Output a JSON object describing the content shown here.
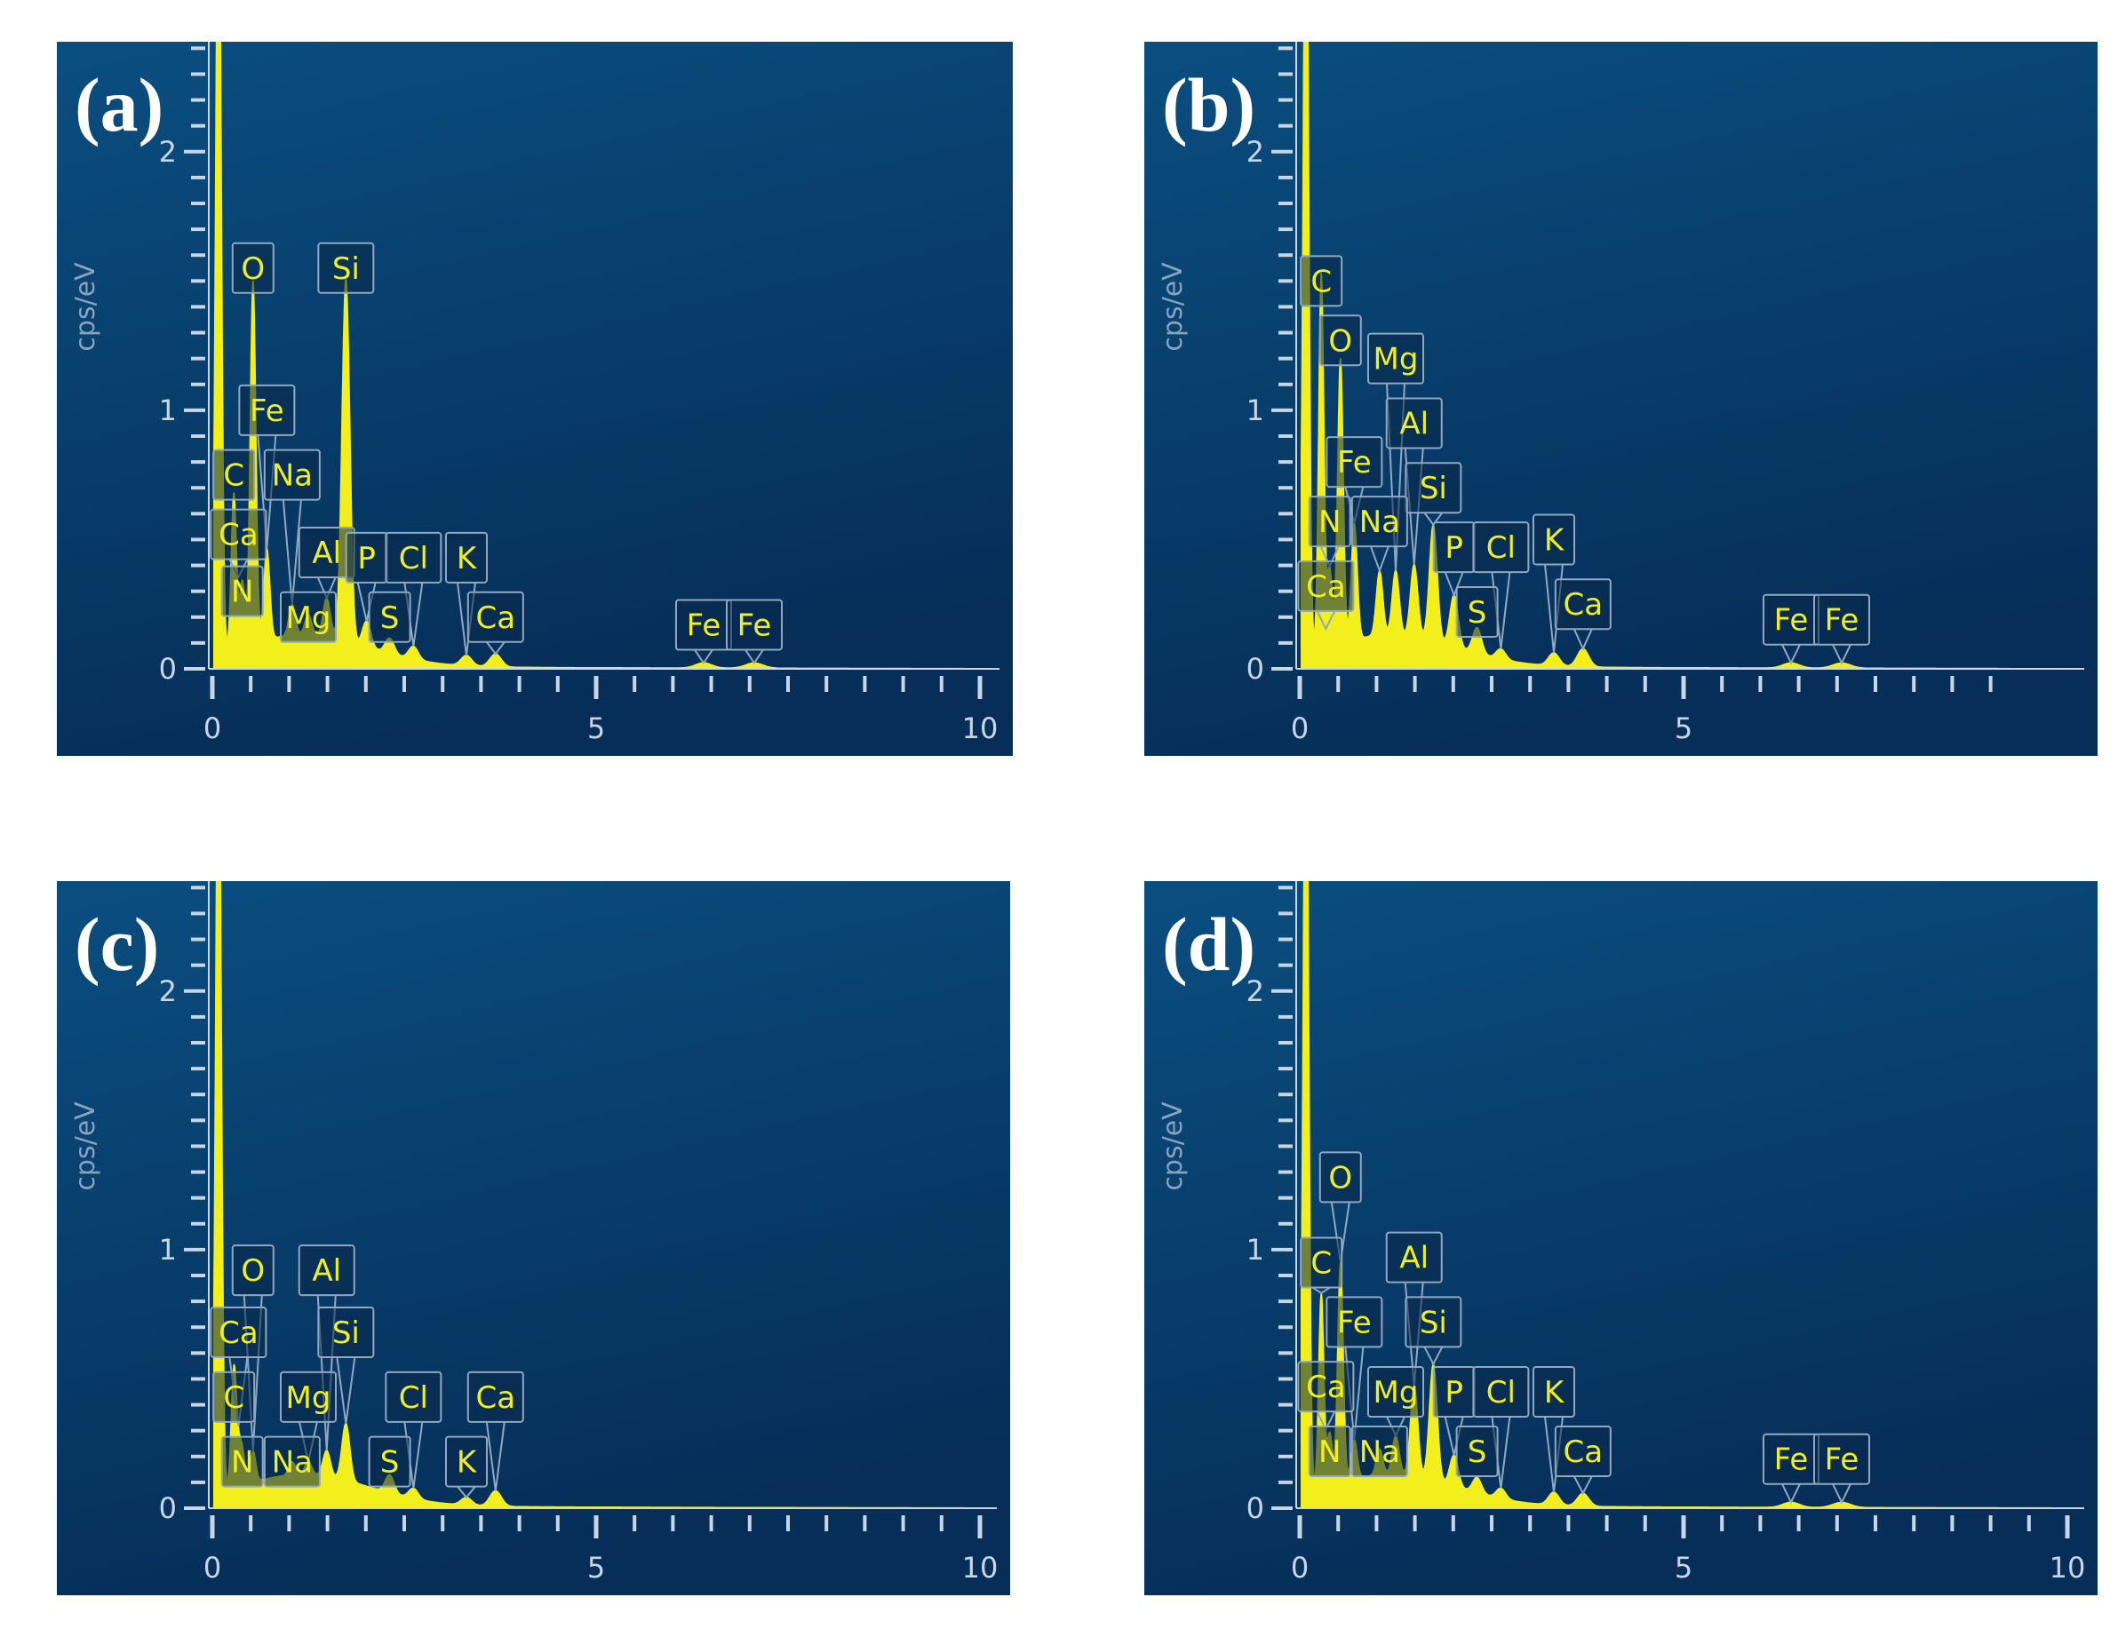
{
  "colors": {
    "background_top": "#0a4e80",
    "background_bottom": "#062e58",
    "spectrum": "#f2ef1c",
    "axis": "#c8d6e4",
    "axis_label": "#8aa3bd",
    "label_box": "#90a8c0"
  },
  "chart_data": [
    {
      "type": "area",
      "panel": "(a)",
      "ylabel": "cps/eV",
      "xlim": [
        0,
        10
      ],
      "ylim": [
        0,
        2.7
      ],
      "x_ticks": [
        "0",
        "5",
        "10"
      ],
      "y_ticks": [
        "0",
        "1",
        "2"
      ],
      "peaks": [
        {
          "element": "C",
          "x": 0.28,
          "y": 0.6
        },
        {
          "element": "N",
          "x": 0.39,
          "y": 0.25
        },
        {
          "element": "O",
          "x": 0.53,
          "y": 1.4
        },
        {
          "element": "Fe",
          "x": 0.71,
          "y": 0.35
        },
        {
          "element": "Na",
          "x": 1.04,
          "y": 0.12
        },
        {
          "element": "Mg",
          "x": 1.25,
          "y": 0.08
        },
        {
          "element": "Al",
          "x": 1.49,
          "y": 0.15
        },
        {
          "element": "Si",
          "x": 1.74,
          "y": 1.4
        },
        {
          "element": "P",
          "x": 2.01,
          "y": 0.1
        },
        {
          "element": "S",
          "x": 2.31,
          "y": 0.06
        },
        {
          "element": "Cl",
          "x": 2.62,
          "y": 0.05
        },
        {
          "element": "K",
          "x": 3.31,
          "y": 0.04
        },
        {
          "element": "Ca",
          "x": 3.69,
          "y": 0.05
        },
        {
          "element": "Fe",
          "x": 6.4,
          "y": 0.02
        },
        {
          "element": "Fe",
          "x": 7.06,
          "y": 0.02
        }
      ],
      "labels": [
        {
          "text": "O",
          "x": 0.53,
          "y": 1.55
        },
        {
          "text": "Si",
          "x": 1.74,
          "y": 1.55
        },
        {
          "text": "Fe",
          "x": 0.71,
          "y": 1.0
        },
        {
          "text": "C",
          "x": 0.28,
          "y": 0.75
        },
        {
          "text": "Na",
          "x": 1.04,
          "y": 0.75
        },
        {
          "text": "Ca",
          "x": 0.34,
          "y": 0.52
        },
        {
          "text": "Al",
          "x": 1.49,
          "y": 0.45
        },
        {
          "text": "P",
          "x": 2.01,
          "y": 0.43
        },
        {
          "text": "Cl",
          "x": 2.62,
          "y": 0.43
        },
        {
          "text": "K",
          "x": 3.31,
          "y": 0.43
        },
        {
          "text": "N",
          "x": 0.39,
          "y": 0.3
        },
        {
          "text": "Mg",
          "x": 1.25,
          "y": 0.2
        },
        {
          "text": "S",
          "x": 2.31,
          "y": 0.2
        },
        {
          "text": "Ca",
          "x": 3.69,
          "y": 0.2
        },
        {
          "text": "Fe",
          "x": 6.4,
          "y": 0.17
        },
        {
          "text": "Fe",
          "x": 7.06,
          "y": 0.17
        }
      ]
    },
    {
      "type": "area",
      "panel": "(b)",
      "ylabel": "cps/eV",
      "xlim": [
        0,
        9.3
      ],
      "ylim": [
        0,
        2.7
      ],
      "x_ticks": [
        "0",
        "5"
      ],
      "y_ticks": [
        "0",
        "1",
        "2"
      ],
      "peaks": [
        {
          "element": "C",
          "x": 0.28,
          "y": 1.45
        },
        {
          "element": "N",
          "x": 0.39,
          "y": 0.3
        },
        {
          "element": "O",
          "x": 0.53,
          "y": 1.1
        },
        {
          "element": "Fe",
          "x": 0.71,
          "y": 0.45
        },
        {
          "element": "Na",
          "x": 1.04,
          "y": 0.25
        },
        {
          "element": "Mg",
          "x": 1.25,
          "y": 0.25
        },
        {
          "element": "Al",
          "x": 1.49,
          "y": 0.28
        },
        {
          "element": "Si",
          "x": 1.74,
          "y": 0.45
        },
        {
          "element": "P",
          "x": 2.01,
          "y": 0.2
        },
        {
          "element": "S",
          "x": 2.31,
          "y": 0.1
        },
        {
          "element": "Cl",
          "x": 2.62,
          "y": 0.04
        },
        {
          "element": "K",
          "x": 3.31,
          "y": 0.05
        },
        {
          "element": "Ca",
          "x": 3.69,
          "y": 0.07
        },
        {
          "element": "Fe",
          "x": 6.4,
          "y": 0.02
        },
        {
          "element": "Fe",
          "x": 7.06,
          "y": 0.02
        }
      ],
      "labels": [
        {
          "text": "C",
          "x": 0.28,
          "y": 1.5
        },
        {
          "text": "O",
          "x": 0.53,
          "y": 1.27
        },
        {
          "text": "Mg",
          "x": 1.25,
          "y": 1.2
        },
        {
          "text": "Al",
          "x": 1.49,
          "y": 0.95
        },
        {
          "text": "Fe",
          "x": 0.71,
          "y": 0.8
        },
        {
          "text": "Si",
          "x": 1.74,
          "y": 0.7
        },
        {
          "text": "N",
          "x": 0.39,
          "y": 0.57
        },
        {
          "text": "Na",
          "x": 1.04,
          "y": 0.57
        },
        {
          "text": "P",
          "x": 2.01,
          "y": 0.47
        },
        {
          "text": "Cl",
          "x": 2.62,
          "y": 0.47
        },
        {
          "text": "K",
          "x": 3.31,
          "y": 0.5
        },
        {
          "text": "Ca",
          "x": 0.34,
          "y": 0.32
        },
        {
          "text": "S",
          "x": 2.31,
          "y": 0.22
        },
        {
          "text": "Ca",
          "x": 3.69,
          "y": 0.25
        },
        {
          "text": "Fe",
          "x": 6.4,
          "y": 0.19
        },
        {
          "text": "Fe",
          "x": 7.06,
          "y": 0.19
        }
      ]
    },
    {
      "type": "area",
      "panel": "(c)",
      "ylabel": "cps/eV",
      "xlim": [
        0,
        10
      ],
      "ylim": [
        0,
        2.7
      ],
      "x_ticks": [
        "0",
        "5",
        "10"
      ],
      "y_ticks": [
        "0",
        "1",
        "2"
      ],
      "peaks": [
        {
          "element": "C",
          "x": 0.28,
          "y": 0.45
        },
        {
          "element": "N",
          "x": 0.39,
          "y": 0.12
        },
        {
          "element": "O",
          "x": 0.53,
          "y": 0.12
        },
        {
          "element": "Ca",
          "x": 0.34,
          "y": 0.1
        },
        {
          "element": "Na",
          "x": 1.04,
          "y": 0.05
        },
        {
          "element": "Mg",
          "x": 1.25,
          "y": 0.05
        },
        {
          "element": "Al",
          "x": 1.49,
          "y": 0.1
        },
        {
          "element": "Si",
          "x": 1.74,
          "y": 0.22
        },
        {
          "element": "S",
          "x": 2.31,
          "y": 0.07
        },
        {
          "element": "Cl",
          "x": 2.62,
          "y": 0.04
        },
        {
          "element": "K",
          "x": 3.31,
          "y": 0.03
        },
        {
          "element": "Ca",
          "x": 3.69,
          "y": 0.06
        }
      ],
      "labels": [
        {
          "text": "O",
          "x": 0.53,
          "y": 0.92
        },
        {
          "text": "Al",
          "x": 1.49,
          "y": 0.92
        },
        {
          "text": "Ca",
          "x": 0.34,
          "y": 0.68
        },
        {
          "text": "Si",
          "x": 1.74,
          "y": 0.68
        },
        {
          "text": "C",
          "x": 0.28,
          "y": 0.43
        },
        {
          "text": "Mg",
          "x": 1.25,
          "y": 0.43
        },
        {
          "text": "Cl",
          "x": 2.62,
          "y": 0.43
        },
        {
          "text": "Ca",
          "x": 3.69,
          "y": 0.43
        },
        {
          "text": "N",
          "x": 0.39,
          "y": 0.18
        },
        {
          "text": "Na",
          "x": 1.04,
          "y": 0.18
        },
        {
          "text": "S",
          "x": 2.31,
          "y": 0.18
        },
        {
          "text": "K",
          "x": 3.31,
          "y": 0.18
        }
      ]
    },
    {
      "type": "area",
      "panel": "(d)",
      "ylabel": "cps/eV",
      "xlim": [
        0,
        10
      ],
      "ylim": [
        0,
        2.7
      ],
      "x_ticks": [
        "0",
        "5",
        "10"
      ],
      "y_ticks": [
        "0",
        "1",
        "2"
      ],
      "peaks": [
        {
          "element": "C",
          "x": 0.28,
          "y": 0.75
        },
        {
          "element": "N",
          "x": 0.39,
          "y": 0.2
        },
        {
          "element": "O",
          "x": 0.53,
          "y": 0.85
        },
        {
          "element": "Fe",
          "x": 0.71,
          "y": 0.15
        },
        {
          "element": "Na",
          "x": 1.04,
          "y": 0.1
        },
        {
          "element": "Mg",
          "x": 1.25,
          "y": 0.15
        },
        {
          "element": "Al",
          "x": 1.49,
          "y": 0.35
        },
        {
          "element": "Si",
          "x": 1.74,
          "y": 0.45
        },
        {
          "element": "P",
          "x": 2.01,
          "y": 0.12
        },
        {
          "element": "S",
          "x": 2.31,
          "y": 0.06
        },
        {
          "element": "Cl",
          "x": 2.62,
          "y": 0.04
        },
        {
          "element": "K",
          "x": 3.31,
          "y": 0.05
        },
        {
          "element": "Ca",
          "x": 3.69,
          "y": 0.05
        },
        {
          "element": "Fe",
          "x": 6.4,
          "y": 0.02
        },
        {
          "element": "Fe",
          "x": 7.06,
          "y": 0.02
        }
      ],
      "labels": [
        {
          "text": "O",
          "x": 0.53,
          "y": 1.28
        },
        {
          "text": "C",
          "x": 0.28,
          "y": 0.95
        },
        {
          "text": "Al",
          "x": 1.49,
          "y": 0.97
        },
        {
          "text": "Fe",
          "x": 0.71,
          "y": 0.72
        },
        {
          "text": "Si",
          "x": 1.74,
          "y": 0.72
        },
        {
          "text": "Ca",
          "x": 0.34,
          "y": 0.47
        },
        {
          "text": "Mg",
          "x": 1.25,
          "y": 0.45
        },
        {
          "text": "P",
          "x": 2.01,
          "y": 0.45
        },
        {
          "text": "Cl",
          "x": 2.62,
          "y": 0.45
        },
        {
          "text": "K",
          "x": 3.31,
          "y": 0.45
        },
        {
          "text": "N",
          "x": 0.39,
          "y": 0.22
        },
        {
          "text": "Na",
          "x": 1.04,
          "y": 0.22
        },
        {
          "text": "S",
          "x": 2.31,
          "y": 0.22
        },
        {
          "text": "Ca",
          "x": 3.69,
          "y": 0.22
        },
        {
          "text": "Fe",
          "x": 6.4,
          "y": 0.19
        },
        {
          "text": "Fe",
          "x": 7.06,
          "y": 0.19
        }
      ]
    }
  ]
}
